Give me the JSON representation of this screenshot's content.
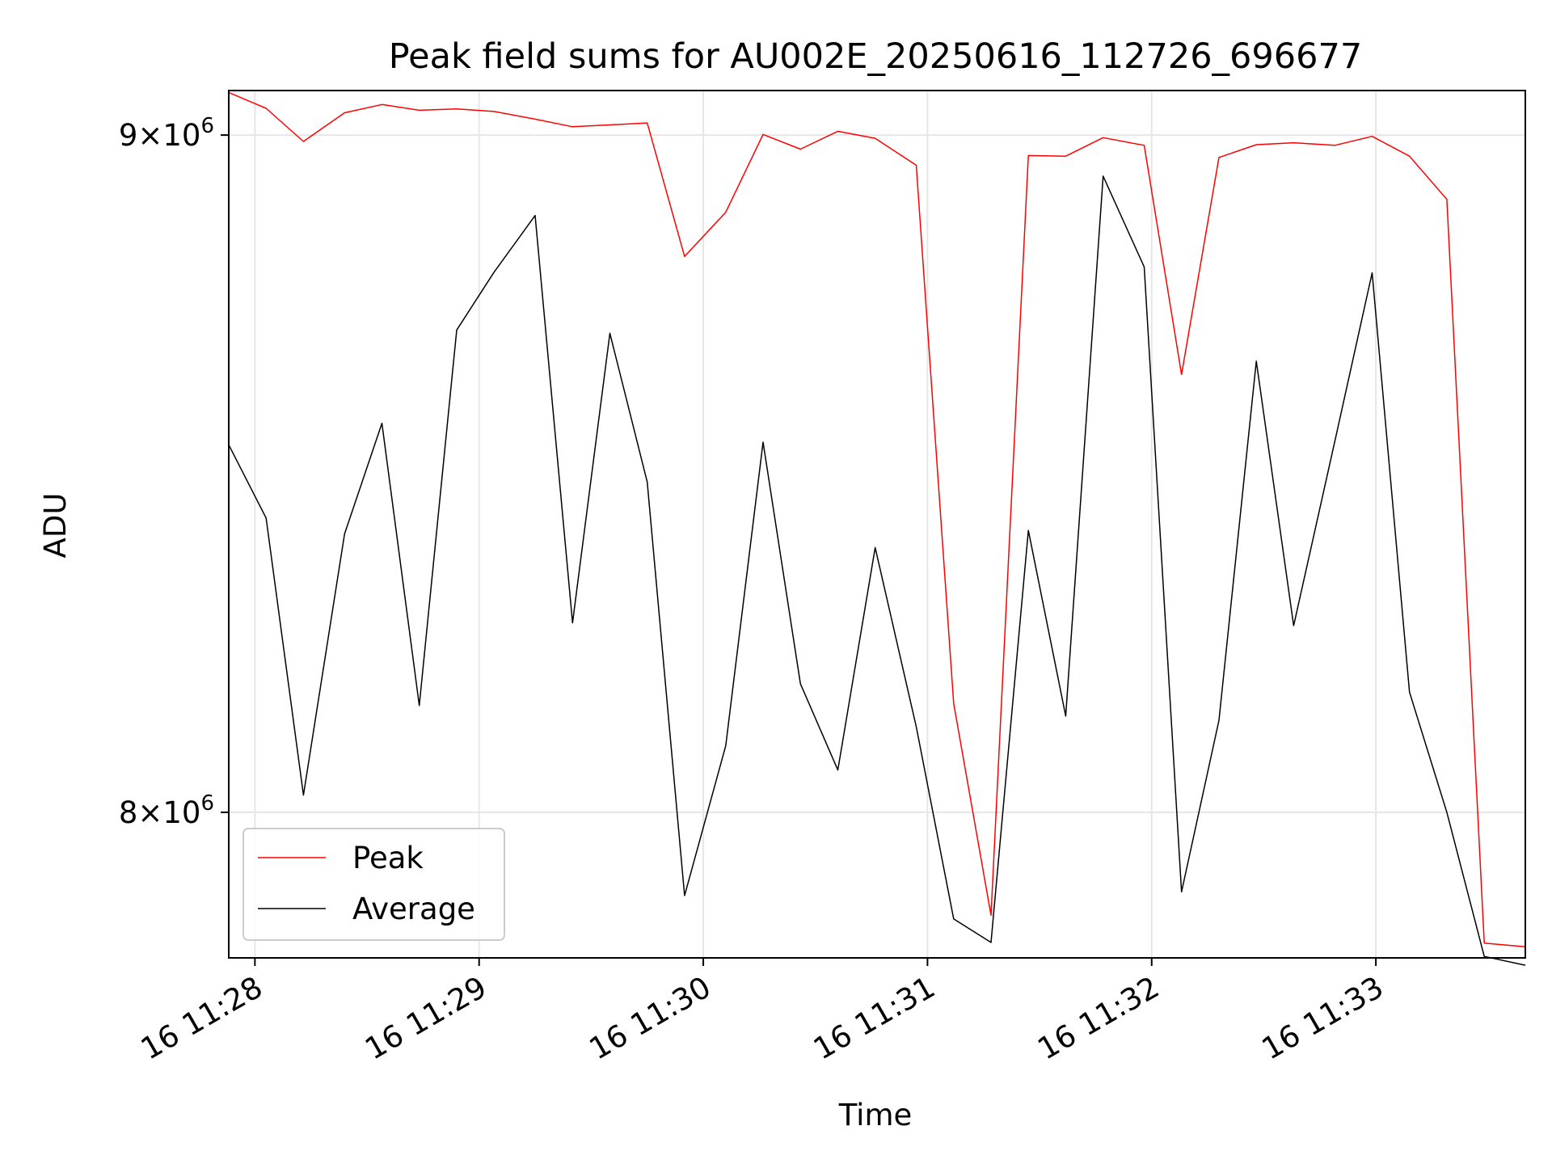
{
  "chart_data": {
    "type": "line",
    "title": "Peak field sums for AU002E_20250616_112726_696677",
    "xlabel": "Time",
    "ylabel": "ADU",
    "x_ticks": [
      "16 11:28",
      "16 11:29",
      "16 11:30",
      "16 11:31",
      "16 11:32",
      "16 11:33"
    ],
    "y_ticks": [
      {
        "mant": "9",
        "exp": "6",
        "value": 9000000
      },
      {
        "mant": "8",
        "exp": "6",
        "value": 8000000
      }
    ],
    "xlim": [
      "2025-06-16 11:27:53",
      "2025-06-16 11:33:40"
    ],
    "ylim": [
      7800000,
      9070000
    ],
    "y_scale": "log",
    "grid": true,
    "legend_position": "lower-left",
    "x": [
      "11:27:53",
      "11:28:03",
      "11:28:13",
      "11:28:24",
      "11:28:34",
      "11:28:44",
      "11:28:54",
      "11:29:04",
      "11:29:15",
      "11:29:25",
      "11:29:35",
      "11:29:45",
      "11:29:55",
      "11:30:06",
      "11:30:16",
      "11:30:26",
      "11:30:36",
      "11:30:46",
      "11:30:57",
      "11:31:07",
      "11:31:17",
      "11:31:27",
      "11:31:37",
      "11:31:47",
      "11:31:58",
      "11:32:08",
      "11:32:18",
      "11:32:28",
      "11:32:38",
      "11:32:49",
      "11:32:59",
      "11:33:09",
      "11:33:19",
      "11:33:29",
      "11:33:40"
    ],
    "series": [
      {
        "name": "Peak",
        "color": "#ff0000",
        "values": [
          9067000,
          9042000,
          8990000,
          9035000,
          9048000,
          9039000,
          9041000,
          9037000,
          9025000,
          9013000,
          9016000,
          9019000,
          8812000,
          8880000,
          9001000,
          8978000,
          9006000,
          8995000,
          8953000,
          8153000,
          7858000,
          8968000,
          8967000,
          8996000,
          8984000,
          8633000,
          8965000,
          8985000,
          8988000,
          8984000,
          8998000,
          8967000,
          8900000,
          7820000,
          7815000
        ]
      },
      {
        "name": "Average",
        "color": "#000000",
        "values": [
          8528000,
          8420000,
          8024000,
          8397000,
          8560000,
          8150000,
          8700000,
          8788000,
          8875000,
          8268000,
          8695000,
          8473000,
          7885000,
          8093000,
          8532000,
          8181000,
          8059000,
          8377000,
          8120000,
          7853000,
          7821000,
          8402000,
          8135000,
          8936000,
          8796000,
          7890000,
          8129000,
          8653000,
          8264000,
          8533000,
          8787000,
          8169000,
          8000000,
          7802000,
          7790000
        ]
      }
    ]
  }
}
